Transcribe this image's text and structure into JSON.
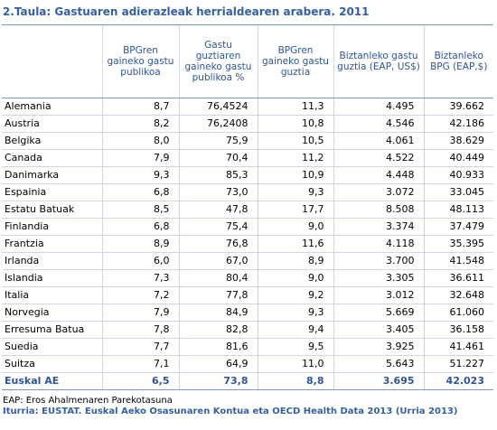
{
  "title": "2.Taula: Gastuaren adierazleak herrialdearen arabera. 2011",
  "headers": [
    "",
    "BPGren gaineko gastu publikoa",
    "Gastu guztiaren gaineko gastu publikoa %",
    "BPGren gaineko gastu guztia",
    "Biztanleko gastu guztia (EAP, US$)",
    "Biztanleko BPG (EAP,$)"
  ],
  "rows": [
    [
      "Alemania",
      "8,7",
      "76,4524",
      "11,3",
      "4.495",
      "39.662"
    ],
    [
      "Austria",
      "8,2",
      "76,2408",
      "10,8",
      "4.546",
      "42.186"
    ],
    [
      "Belgika",
      "8,0",
      "75,9",
      "10,5",
      "4.061",
      "38.629"
    ],
    [
      "Canada",
      "7,9",
      "70,4",
      "11,2",
      "4.522",
      "40.449"
    ],
    [
      "Danimarka",
      "9,3",
      "85,3",
      "10,9",
      "4.448",
      "40.933"
    ],
    [
      "Espainia",
      "6,8",
      "73,0",
      "9,3",
      "3.072",
      "33.045"
    ],
    [
      "Estatu Batuak",
      "8,5",
      "47,8",
      "17,7",
      "8.508",
      "48.113"
    ],
    [
      "Finlandia",
      "6,8",
      "75,4",
      "9,0",
      "3.374",
      "37.479"
    ],
    [
      "Frantzia",
      "8,9",
      "76,8",
      "11,6",
      "4.118",
      "35.395"
    ],
    [
      "Irlanda",
      "6,0",
      "67,0",
      "8,9",
      "3.700",
      "41.548"
    ],
    [
      "Islandia",
      "7,3",
      "80,4",
      "9,0",
      "3.305",
      "36.611"
    ],
    [
      "Italia",
      "7,2",
      "77,8",
      "9,2",
      "3.012",
      "32.648"
    ],
    [
      "Norvegia",
      "7,9",
      "84,9",
      "9,3",
      "5.669",
      "61.060"
    ],
    [
      "Erresuma Batua",
      "7,8",
      "82,8",
      "9,4",
      "3.405",
      "36.158"
    ],
    [
      "Suedia",
      "7,7",
      "81,6",
      "9,5",
      "3.925",
      "41.461"
    ],
    [
      "Suitza",
      "7,1",
      "64,9",
      "11,0",
      "5.643",
      "51.227"
    ]
  ],
  "total": [
    "Euskal AE",
    "6,5",
    "73,8",
    "8,8",
    "3.695",
    "42.023"
  ],
  "note": "EAP: Eros Ahalmenaren Parekotasuna",
  "source": "Iturria: EUSTAT. Euskal Aeko Osasunaren Kontua eta OECD Health Data 2013 (Urria 2013)"
}
